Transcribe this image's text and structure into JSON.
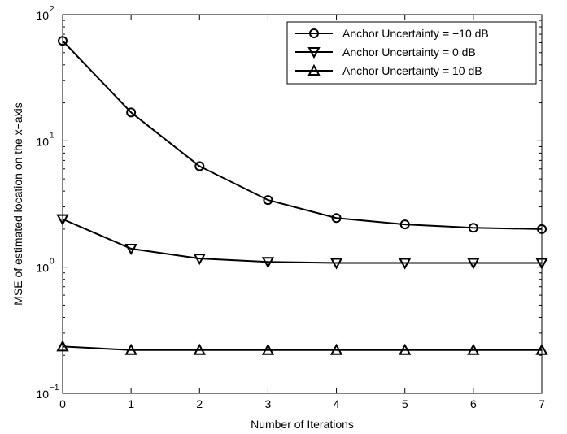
{
  "chart_data": {
    "type": "line",
    "xlabel": "Number of Iterations",
    "ylabel": "MSE of estimated location on the x−axis",
    "yscale": "log",
    "xlim": [
      0,
      7
    ],
    "ylim": [
      0.1,
      100
    ],
    "x": [
      0,
      1,
      2,
      3,
      4,
      5,
      6,
      7
    ],
    "xticks": [
      "0",
      "1",
      "2",
      "3",
      "4",
      "5",
      "6",
      "7"
    ],
    "yticks": [
      {
        "base": "10",
        "exp": "−1",
        "value": 0.1
      },
      {
        "base": "10",
        "exp": "0",
        "value": 1
      },
      {
        "base": "10",
        "exp": "1",
        "value": 10
      },
      {
        "base": "10",
        "exp": "2",
        "value": 100
      }
    ],
    "legend_position": "top-right",
    "grid": false,
    "series": [
      {
        "name": "Anchor Uncertainty = −10 dB",
        "marker": "circle",
        "values": [
          62,
          16.8,
          6.3,
          3.4,
          2.45,
          2.18,
          2.05,
          2.0
        ]
      },
      {
        "name": "Anchor Uncertainty = 0 dB",
        "marker": "triangle-down",
        "values": [
          2.4,
          1.4,
          1.17,
          1.1,
          1.08,
          1.08,
          1.08,
          1.08
        ]
      },
      {
        "name": "Anchor Uncertainty = 10 dB",
        "marker": "triangle-up",
        "values": [
          0.235,
          0.22,
          0.22,
          0.22,
          0.22,
          0.22,
          0.22,
          0.22
        ]
      }
    ]
  }
}
